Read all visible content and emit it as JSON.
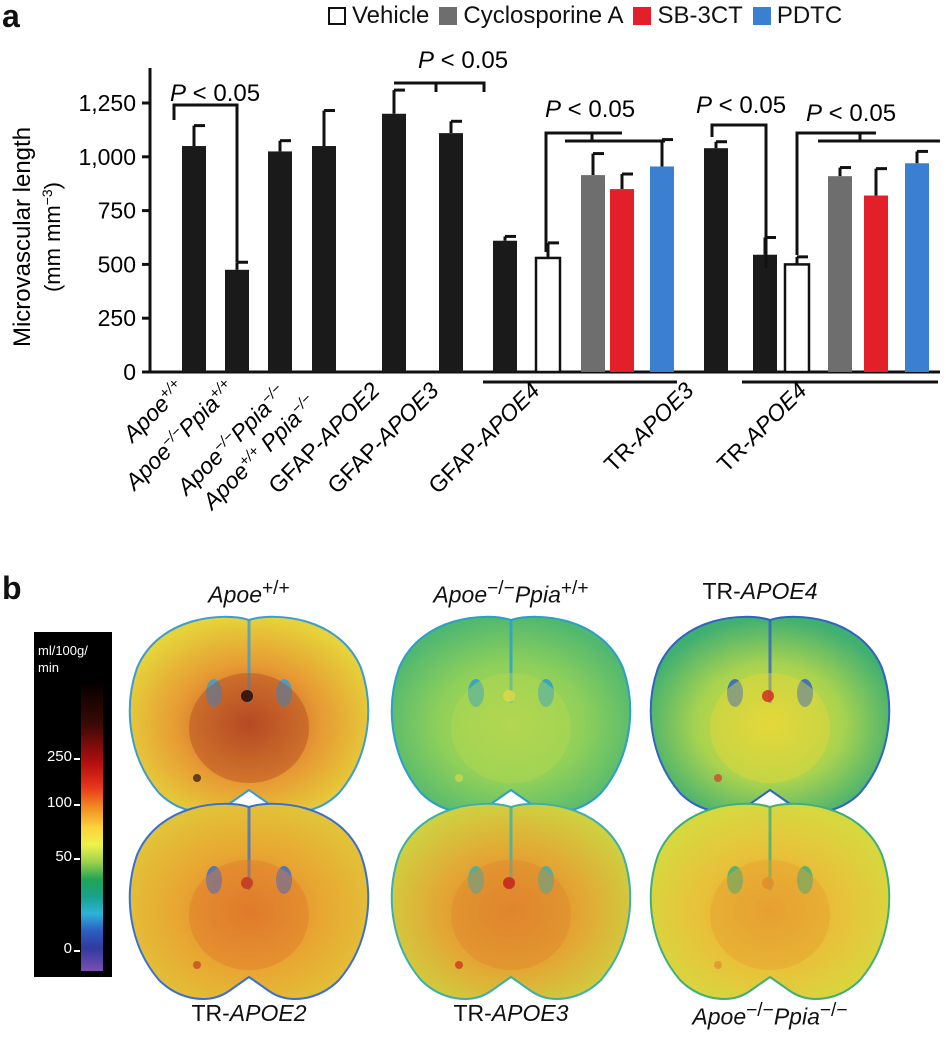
{
  "panel_a": {
    "letter": "a",
    "chart_data": {
      "type": "bar",
      "ylabel_line1": "Microvascular length",
      "ylabel_line2": "(mm mm",
      "ylabel_sup": "−3",
      "ylabel_close": ")",
      "ylim": [
        0,
        1375
      ],
      "yticks": [
        "0",
        "250",
        "500",
        "750",
        "1,000",
        "1,250"
      ],
      "ytick_values": [
        0,
        250,
        500,
        750,
        1000,
        1250
      ],
      "legend": [
        {
          "name": "Vehicle",
          "color": "#ffffff",
          "outline": true
        },
        {
          "name": "Cyclosporine A",
          "color": "#6e6e6e"
        },
        {
          "name": "SB-3CT",
          "color": "#e3202a"
        },
        {
          "name": "PDTC",
          "color": "#3b7fd0"
        }
      ],
      "bars": [
        {
          "label": "Apoe+/+",
          "value": 1050,
          "err": 95,
          "color": "#1a1a1a"
        },
        {
          "label": "Apoe−/−Ppia+/+",
          "value": 475,
          "err": 35,
          "color": "#1a1a1a"
        },
        {
          "label": "Apoe−/−Ppia−/−",
          "value": 1025,
          "err": 50,
          "color": "#1a1a1a"
        },
        {
          "label": "Apoe+/+ Ppia−/−",
          "value": 1050,
          "err": 165,
          "color": "#1a1a1a"
        },
        {
          "label": "GFAP-APOE2",
          "value": 1200,
          "err": 110,
          "color": "#1a1a1a"
        },
        {
          "label": "GFAP-APOE3",
          "value": 1110,
          "err": 55,
          "color": "#1a1a1a"
        },
        {
          "label": "GFAP-APOE4",
          "value": 610,
          "err": 20,
          "color": "#1a1a1a"
        },
        {
          "label": "GFAP-APOE4 Vehicle",
          "value": 530,
          "err": 70,
          "color": "#ffffff"
        },
        {
          "label": "GFAP-APOE4 Cyclosporine A",
          "value": 915,
          "err": 100,
          "color": "#6e6e6e"
        },
        {
          "label": "GFAP-APOE4 SB-3CT",
          "value": 850,
          "err": 70,
          "color": "#e3202a"
        },
        {
          "label": "GFAP-APOE4 PDTC",
          "value": 955,
          "err": 125,
          "color": "#3b7fd0"
        },
        {
          "label": "TR-APOE3",
          "value": 1040,
          "err": 30,
          "color": "#1a1a1a"
        },
        {
          "label": "TR-APOE4",
          "value": 545,
          "err": 80,
          "color": "#1a1a1a"
        },
        {
          "label": "TR-APOE4 Vehicle",
          "value": 500,
          "err": 35,
          "color": "#ffffff"
        },
        {
          "label": "TR-APOE4 Cyclosporine A",
          "value": 910,
          "err": 40,
          "color": "#6e6e6e"
        },
        {
          "label": "TR-APOE4 SB-3CT",
          "value": 820,
          "err": 125,
          "color": "#e3202a"
        },
        {
          "label": "TR-APOE4 PDTC",
          "value": 970,
          "err": 55,
          "color": "#3b7fd0"
        }
      ],
      "xticklabels": [
        {
          "base": "Apoe",
          "sup": "+/+"
        },
        {
          "base": "Apoe",
          "sup": "−/−",
          "base2": "Ppia",
          "sup2": "+/+"
        },
        {
          "base": "Apoe",
          "sup": "−/−",
          "base2": "Ppia",
          "sup2": "−/−"
        },
        {
          "base": "Apoe",
          "sup": "+/+",
          "base2": " Ppia",
          "sup2": "−/−"
        },
        {
          "plain": "GFAP-",
          "it": "APOE2"
        },
        {
          "plain": "GFAP-",
          "it": "APOE3"
        },
        {
          "plain": "GFAP-",
          "it": "APOE4"
        },
        {
          "plain": "TR-",
          "it": "APOE3"
        },
        {
          "plain": "TR-",
          "it": "APOE4"
        }
      ],
      "annotations": [
        "P < 0.05",
        "P < 0.05",
        "P < 0.05",
        "P < 0.05",
        "P < 0.05"
      ]
    }
  },
  "panel_b": {
    "letter": "b",
    "colorbar": {
      "title_line1": "ml/100g/",
      "title_line2": "min",
      "ticks": [
        "250",
        "100",
        "50",
        "0"
      ]
    },
    "images": [
      {
        "title_base": "Apoe",
        "title_sup": "+/+",
        "style": "hot"
      },
      {
        "title_base": "Apoe",
        "title_sup": "−/−",
        "title_base2": "Ppia",
        "title_sup2": "+/+",
        "style": "cool"
      },
      {
        "title_plain": "TR-",
        "title_it": "APOE4",
        "style": "mid"
      },
      {
        "title_plain": "TR-",
        "title_it": "APOE2",
        "style": "warm"
      },
      {
        "title_plain": "TR-",
        "title_it": "APOE3",
        "style": "warm2"
      },
      {
        "title_base": "Apoe",
        "title_sup": "−/−",
        "title_base2": "Ppia",
        "title_sup2": "−/−",
        "style": "yellow"
      }
    ]
  }
}
